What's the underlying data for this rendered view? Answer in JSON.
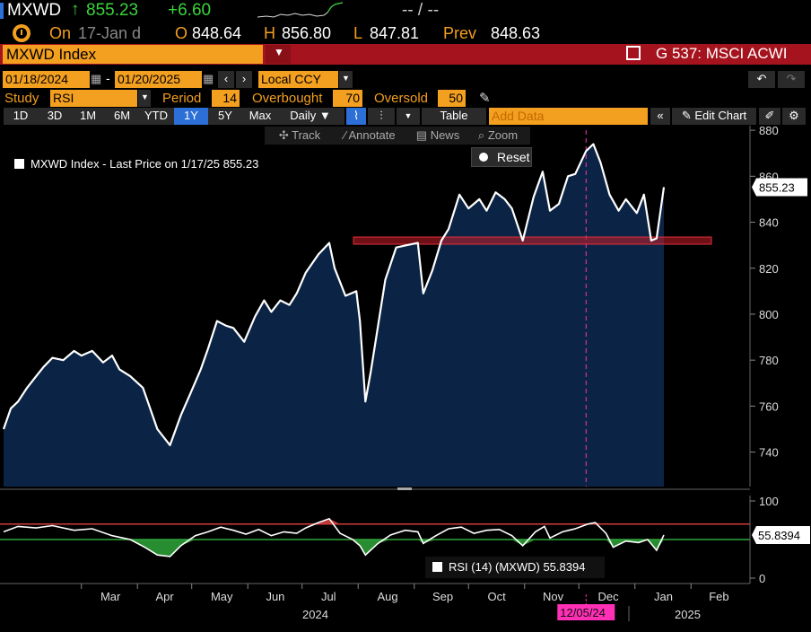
{
  "ticker_bar": {
    "symbol": "MXWD",
    "last": "855.23",
    "change": "+6.60",
    "bidask": "-- / --",
    "on_label": "On",
    "date": "17-Jan d",
    "open_label": "O",
    "open": "848.64",
    "high_label": "H",
    "high": "856.80",
    "low_label": "L",
    "low": "847.81",
    "prev_label": "Prev",
    "prev": "848.63"
  },
  "security_bar": {
    "name": "MXWD Index",
    "function": "G 537: MSCI ACWI"
  },
  "controls": {
    "start_date": "01/18/2024",
    "end_date": "01/20/2025",
    "currency": "Local CCY",
    "study_label": "Study",
    "study": "RSI",
    "period_label": "Period",
    "period": "14",
    "overbought_label": "Overbought",
    "overbought": "70",
    "oversold_label": "Oversold",
    "oversold": "50",
    "ranges": [
      "1D",
      "3D",
      "1M",
      "6M",
      "YTD",
      "1Y",
      "5Y",
      "Max"
    ],
    "active_range": "1Y",
    "frequency": "Daily",
    "table_label": "Table",
    "add_data_placeholder": "Add Data",
    "edit_chart_label": "Edit Chart",
    "tools": [
      "Track",
      "Annotate",
      "News",
      "Zoom"
    ],
    "reset_label": "Reset"
  },
  "colors": {
    "accent": "#f39f1f",
    "up_green": "#3ad33a",
    "bar_red": "#a5141e",
    "area_fill": "#0b2445",
    "rsi_over": "#d23c3c",
    "rsi_under": "#2fa63a",
    "highlight_magenta": "#ff2fb6"
  },
  "chart_data": [
    {
      "type": "area",
      "legend": "MXWD Index - Last Price on 1/17/25 855.23",
      "last_value_label": "855.23",
      "ylim": [
        725,
        882
      ],
      "yticks": [
        "740",
        "760",
        "780",
        "800",
        "820",
        "840",
        "860",
        "880"
      ],
      "x_months": [
        "Mar",
        "Apr",
        "May",
        "Jun",
        "Jul",
        "Aug",
        "Sep",
        "Oct",
        "Nov",
        "Dec",
        "Jan",
        "Feb"
      ],
      "x_years": [
        "2024",
        "2025"
      ],
      "highlight_date": "12/05/24",
      "support_level": 832,
      "points": [
        [
          "2024-01-18",
          750
        ],
        [
          "2024-01-22",
          759
        ],
        [
          "2024-01-26",
          762
        ],
        [
          "2024-01-31",
          768
        ],
        [
          "2024-02-05",
          773
        ],
        [
          "2024-02-09",
          777
        ],
        [
          "2024-02-14",
          781
        ],
        [
          "2024-02-20",
          780
        ],
        [
          "2024-02-26",
          784
        ],
        [
          "2024-03-01",
          782
        ],
        [
          "2024-03-07",
          784
        ],
        [
          "2024-03-13",
          779
        ],
        [
          "2024-03-18",
          782
        ],
        [
          "2024-03-22",
          776
        ],
        [
          "2024-03-28",
          773
        ],
        [
          "2024-04-04",
          768
        ],
        [
          "2024-04-12",
          750
        ],
        [
          "2024-04-19",
          743
        ],
        [
          "2024-04-25",
          756
        ],
        [
          "2024-04-30",
          765
        ],
        [
          "2024-05-06",
          776
        ],
        [
          "2024-05-10",
          785
        ],
        [
          "2024-05-15",
          797
        ],
        [
          "2024-05-20",
          795
        ],
        [
          "2024-05-24",
          794
        ],
        [
          "2024-05-30",
          788
        ],
        [
          "2024-06-05",
          799
        ],
        [
          "2024-06-10",
          806
        ],
        [
          "2024-06-14",
          801
        ],
        [
          "2024-06-19",
          806
        ],
        [
          "2024-06-24",
          804
        ],
        [
          "2024-06-28",
          809
        ],
        [
          "2024-07-03",
          818
        ],
        [
          "2024-07-10",
          826
        ],
        [
          "2024-07-16",
          831
        ],
        [
          "2024-07-19",
          820
        ],
        [
          "2024-07-25",
          808
        ],
        [
          "2024-07-31",
          810
        ],
        [
          "2024-08-02",
          797
        ],
        [
          "2024-08-05",
          762
        ],
        [
          "2024-08-08",
          775
        ],
        [
          "2024-08-12",
          795
        ],
        [
          "2024-08-16",
          815
        ],
        [
          "2024-08-22",
          829
        ],
        [
          "2024-08-28",
          830
        ],
        [
          "2024-09-03",
          831
        ],
        [
          "2024-09-06",
          809
        ],
        [
          "2024-09-11",
          819
        ],
        [
          "2024-09-16",
          832
        ],
        [
          "2024-09-20",
          837
        ],
        [
          "2024-09-26",
          852
        ],
        [
          "2024-10-01",
          846
        ],
        [
          "2024-10-07",
          850
        ],
        [
          "2024-10-11",
          845
        ],
        [
          "2024-10-16",
          853
        ],
        [
          "2024-10-21",
          850
        ],
        [
          "2024-10-25",
          846
        ],
        [
          "2024-10-31",
          832
        ],
        [
          "2024-11-06",
          851
        ],
        [
          "2024-11-11",
          862
        ],
        [
          "2024-11-15",
          845
        ],
        [
          "2024-11-20",
          848
        ],
        [
          "2024-11-25",
          860
        ],
        [
          "2024-11-29",
          861
        ],
        [
          "2024-12-05",
          871
        ],
        [
          "2024-12-09",
          874
        ],
        [
          "2024-12-13",
          866
        ],
        [
          "2024-12-18",
          852
        ],
        [
          "2024-12-23",
          845
        ],
        [
          "2024-12-27",
          850
        ],
        [
          "2025-01-02",
          844
        ],
        [
          "2025-01-06",
          852
        ],
        [
          "2025-01-10",
          832
        ],
        [
          "2025-01-13",
          833
        ],
        [
          "2025-01-17",
          855.23
        ]
      ]
    },
    {
      "type": "line",
      "legend": "RSI (14) (MXWD) 55.8394",
      "last_value_label": "55.8394",
      "ylim": [
        0,
        100
      ],
      "yticks": [
        "0",
        "100"
      ],
      "overbought": 70,
      "oversold": 50,
      "points": [
        [
          "2024-01-18",
          60
        ],
        [
          "2024-01-26",
          67
        ],
        [
          "2024-02-05",
          65
        ],
        [
          "2024-02-14",
          68
        ],
        [
          "2024-02-26",
          62
        ],
        [
          "2024-03-07",
          64
        ],
        [
          "2024-03-18",
          55
        ],
        [
          "2024-03-28",
          50
        ],
        [
          "2024-04-05",
          40
        ],
        [
          "2024-04-12",
          30
        ],
        [
          "2024-04-19",
          28
        ],
        [
          "2024-04-25",
          42
        ],
        [
          "2024-05-03",
          55
        ],
        [
          "2024-05-10",
          60
        ],
        [
          "2024-05-17",
          66
        ],
        [
          "2024-05-24",
          62
        ],
        [
          "2024-05-31",
          57
        ],
        [
          "2024-06-07",
          63
        ],
        [
          "2024-06-14",
          55
        ],
        [
          "2024-06-21",
          60
        ],
        [
          "2024-06-28",
          58
        ],
        [
          "2024-07-03",
          65
        ],
        [
          "2024-07-10",
          72
        ],
        [
          "2024-07-16",
          77
        ],
        [
          "2024-07-22",
          58
        ],
        [
          "2024-07-29",
          50
        ],
        [
          "2024-08-02",
          42
        ],
        [
          "2024-08-05",
          30
        ],
        [
          "2024-08-12",
          45
        ],
        [
          "2024-08-19",
          56
        ],
        [
          "2024-08-27",
          62
        ],
        [
          "2024-09-03",
          60
        ],
        [
          "2024-09-06",
          45
        ],
        [
          "2024-09-13",
          55
        ],
        [
          "2024-09-20",
          64
        ],
        [
          "2024-09-27",
          66
        ],
        [
          "2024-10-04",
          58
        ],
        [
          "2024-10-11",
          62
        ],
        [
          "2024-10-18",
          63
        ],
        [
          "2024-10-25",
          55
        ],
        [
          "2024-10-31",
          42
        ],
        [
          "2024-11-07",
          60
        ],
        [
          "2024-11-12",
          67
        ],
        [
          "2024-11-15",
          52
        ],
        [
          "2024-11-22",
          60
        ],
        [
          "2024-11-29",
          64
        ],
        [
          "2024-12-06",
          70
        ],
        [
          "2024-12-10",
          72
        ],
        [
          "2024-12-16",
          58
        ],
        [
          "2024-12-20",
          40
        ],
        [
          "2024-12-27",
          48
        ],
        [
          "2025-01-03",
          46
        ],
        [
          "2025-01-08",
          50
        ],
        [
          "2025-01-13",
          36
        ],
        [
          "2025-01-17",
          55.84
        ]
      ]
    }
  ]
}
